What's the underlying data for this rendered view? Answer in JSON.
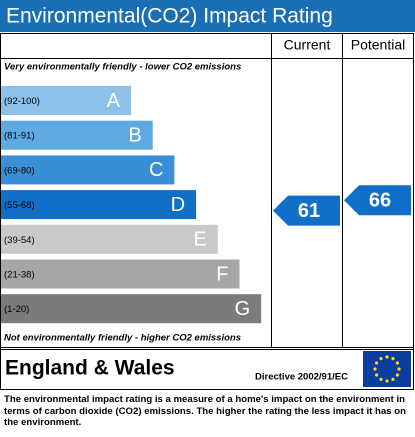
{
  "title": "Environmental(CO2) Impact Rating",
  "columns": [
    "Current",
    "Potential"
  ],
  "top_note": "Very environmentally friendly - lower CO2 emissions",
  "bottom_note": "Not environmentally friendly - higher CO2 emissions",
  "bands": [
    {
      "range": "(92-100)",
      "letter": "A",
      "color": "#8ec1ea"
    },
    {
      "range": "(81-91)",
      "letter": "B",
      "color": "#5fa9e2"
    },
    {
      "range": "(69-80)",
      "letter": "C",
      "color": "#3a8ed6"
    },
    {
      "range": "(55-68)",
      "letter": "D",
      "color": "#1070c8"
    },
    {
      "range": "(39-54)",
      "letter": "E",
      "color": "#c9c9c9"
    },
    {
      "range": "(21-38)",
      "letter": "F",
      "color": "#a6a6a6"
    },
    {
      "range": "(1-20)",
      "letter": "G",
      "color": "#7b7b7b"
    }
  ],
  "ratings": [
    {
      "value": 61,
      "color": "#1070c8"
    },
    {
      "value": 66,
      "color": "#1070c8"
    }
  ],
  "region": "England & Wales",
  "directive": "Directive 2002/91/EC",
  "footer": "The environmental impact rating is a measure of a home's impact on the environment in terms of carbon dioxide (CO2) emissions. The higher the rating the less impact it has on the environment."
}
